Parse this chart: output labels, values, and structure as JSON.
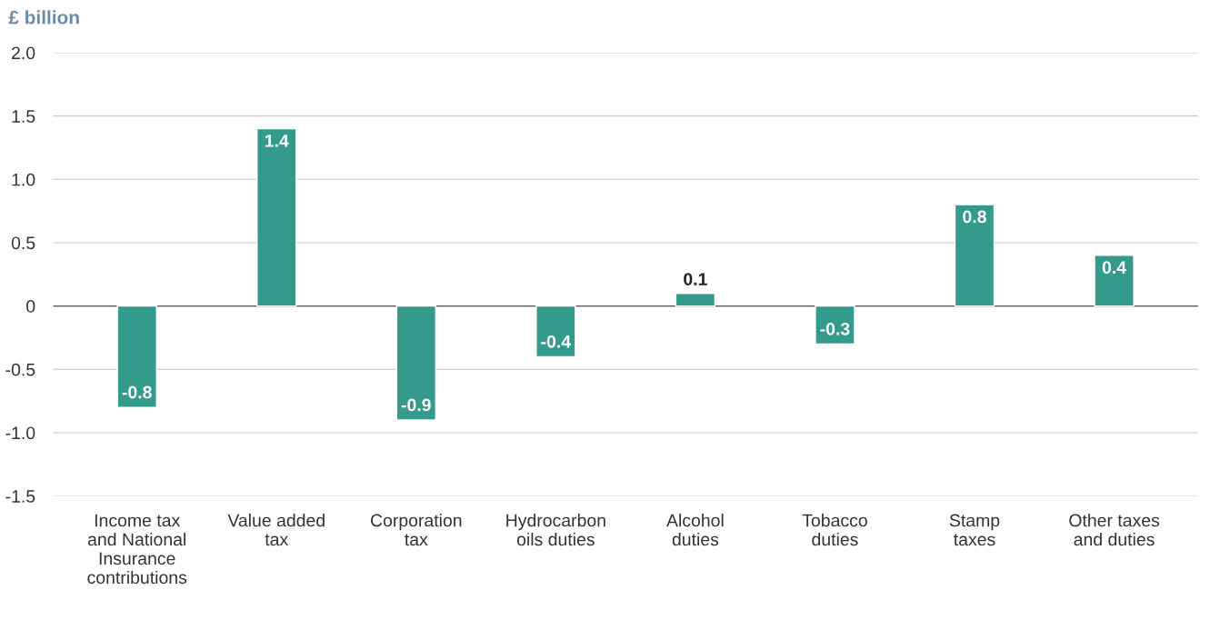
{
  "chart_data": {
    "type": "bar",
    "ylabel": "£ billion",
    "categories": [
      "Income tax\nand National\nInsurance\ncontributions",
      "Value added\ntax",
      "Corporation\ntax",
      "Hydrocarbon\noils duties",
      "Alcohol\nduties",
      "Tobacco\nduties",
      "Stamp\ntaxes",
      "Other taxes\nand duties"
    ],
    "values": [
      -0.8,
      1.4,
      -0.9,
      -0.4,
      0.1,
      -0.3,
      0.8,
      0.4
    ],
    "color": "#339a8c",
    "ylim": [
      -1.5,
      2.0
    ],
    "yticks": [
      -1.5,
      {
        "value": -1,
        "label": "-1.0"
      },
      -0.5,
      0,
      0.5,
      {
        "value": 1,
        "label": "1.0"
      },
      1.5,
      {
        "value": 2,
        "label": "2.0"
      }
    ],
    "value_labels": [
      "-0.8",
      "1.4",
      "-0.9",
      "-0.4",
      "0.1",
      "-0.3",
      "0.8",
      "0.4"
    ],
    "grid": "y"
  }
}
